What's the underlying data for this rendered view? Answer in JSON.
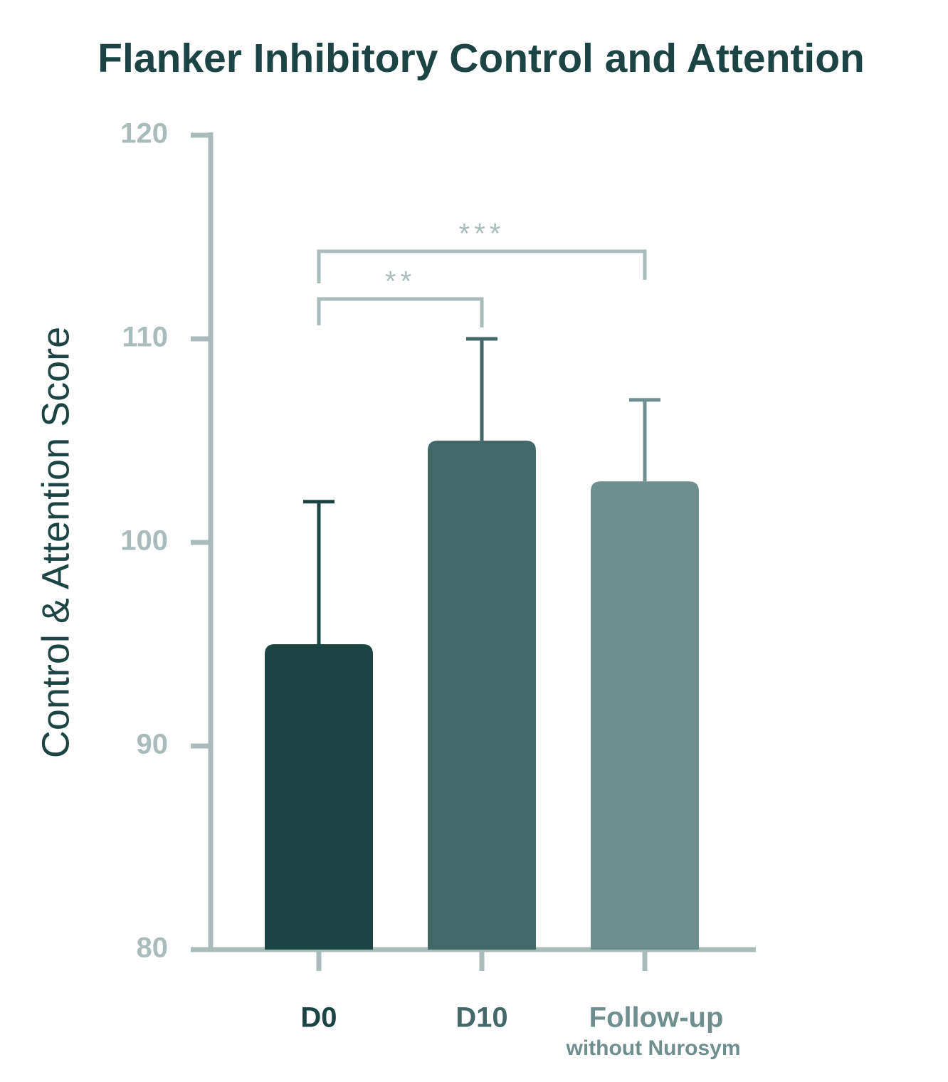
{
  "chart_data": {
    "type": "bar",
    "title": "Flanker Inhibitory Control and Attention",
    "y_label": "Control & Attention Score",
    "categories": [
      "D0",
      "D10",
      "Follow-up"
    ],
    "category_sublabels": [
      null,
      null,
      "without Nurosym"
    ],
    "values": [
      95,
      105,
      103
    ],
    "errors": [
      7,
      5,
      4
    ],
    "colors": [
      "#1c4443",
      "#446868",
      "#6e8f8e"
    ],
    "axis_color": "#a9bcbb",
    "ylim": [
      80,
      120
    ],
    "yticks": [
      80,
      90,
      100,
      110,
      120
    ],
    "significance": [
      {
        "from": 0,
        "to": 1,
        "label": "**"
      },
      {
        "from": 0,
        "to": 2,
        "label": "***"
      }
    ]
  }
}
